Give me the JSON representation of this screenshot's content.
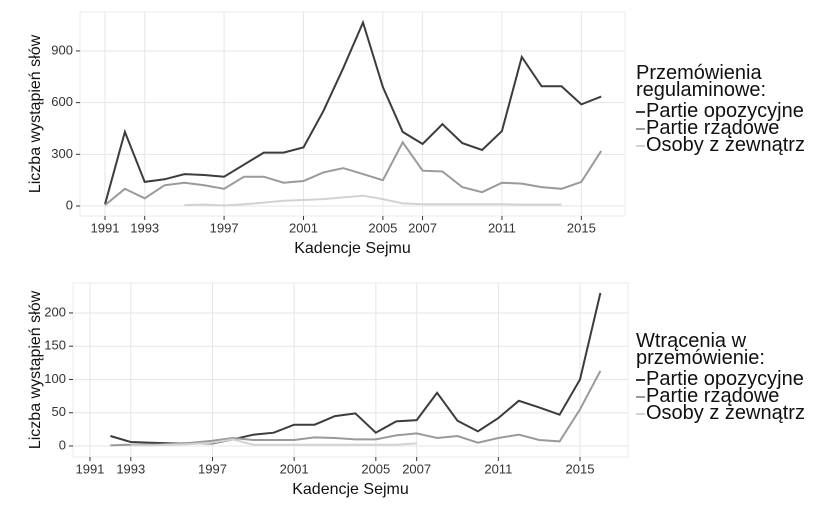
{
  "chart_data": [
    {
      "type": "line",
      "legend_title": "Przemówienia regulaminowe:",
      "xlabel": "Kadencje Sejmu",
      "ylabel": "Liczba wystąpień słów",
      "x": [
        1991,
        1992,
        1993,
        1994,
        1995,
        1996,
        1997,
        1998,
        1999,
        2000,
        2001,
        2002,
        2003,
        2004,
        2005,
        2006,
        2007,
        2008,
        2009,
        2010,
        2011,
        2012,
        2013,
        2014,
        2015,
        2016
      ],
      "series": [
        {
          "name": "Partie opozycyjne",
          "color": "#3c3c3c",
          "values": [
            10,
            430,
            140,
            155,
            185,
            180,
            170,
            240,
            310,
            310,
            340,
            550,
            800,
            1065,
            690,
            430,
            360,
            475,
            365,
            325,
            435,
            865,
            695,
            695,
            590,
            635
          ]
        },
        {
          "name": "Partie rządowe",
          "color": "#9a9a9a",
          "values": [
            5,
            100,
            45,
            120,
            135,
            120,
            100,
            170,
            170,
            135,
            145,
            195,
            220,
            185,
            150,
            370,
            205,
            200,
            110,
            80,
            135,
            130,
            110,
            100,
            140,
            320
          ]
        },
        {
          "name": "Osoby z żewnątrz",
          "color": "#d2d2d2",
          "values": [
            null,
            null,
            null,
            null,
            5,
            8,
            3,
            10,
            20,
            30,
            35,
            40,
            50,
            60,
            40,
            15,
            10,
            10,
            10,
            10,
            10,
            8,
            8,
            8,
            null,
            null
          ]
        }
      ],
      "xlim": [
        1989.74,
        2017.2
      ],
      "ylim": [
        -58,
        1126
      ],
      "xticks": [
        1991,
        1993,
        1997,
        2001,
        2005,
        2007,
        2011,
        2015
      ],
      "yticks": [
        0,
        300,
        600,
        900
      ],
      "grid": true
    },
    {
      "type": "line",
      "legend_title": "Wtrącenia w przemówienie:",
      "xlabel": "Kadencje Sejmu",
      "ylabel": "Liczba wystąpień słów",
      "x": [
        1992,
        1993,
        1994,
        1995,
        1996,
        1997,
        1998,
        1999,
        2000,
        2001,
        2002,
        2003,
        2004,
        2005,
        2006,
        2007,
        2008,
        2009,
        2010,
        2011,
        2012,
        2013,
        2014,
        2015,
        2016
      ],
      "series": [
        {
          "name": "Partie opozycyjne",
          "color": "#3c3c3c",
          "values": [
            15,
            6,
            5,
            4,
            4,
            4,
            10,
            17,
            20,
            32,
            32,
            45,
            49,
            20,
            37,
            39,
            80,
            38,
            22,
            42,
            68,
            58,
            47,
            100,
            230
          ]
        },
        {
          "name": "Partie rządowe",
          "color": "#9a9a9a",
          "values": [
            1,
            2,
            2,
            3,
            5,
            8,
            12,
            9,
            9,
            9,
            13,
            12,
            10,
            10,
            16,
            19,
            12,
            15,
            5,
            12,
            17,
            9,
            7,
            55,
            113
          ]
        },
        {
          "name": "Osoby z żewnątrz",
          "color": "#d2d2d2",
          "values": [
            null,
            1,
            1,
            2,
            3,
            5,
            10,
            2,
            2,
            2,
            2,
            2,
            2,
            2,
            2,
            4,
            null,
            null,
            null,
            null,
            null,
            null,
            null,
            null,
            null
          ]
        }
      ],
      "xlim": [
        1990.17,
        2017.35
      ],
      "ylim": [
        -16.5,
        245
      ],
      "xticks": [
        1991,
        1993,
        1997,
        2001,
        2005,
        2007,
        2011,
        2015
      ],
      "yticks": [
        0,
        50,
        100,
        150,
        200
      ],
      "grid": true
    }
  ]
}
